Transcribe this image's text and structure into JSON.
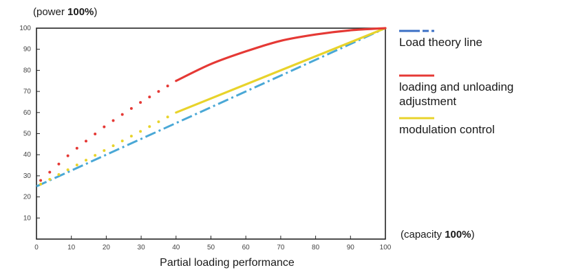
{
  "chart_data": {
    "type": "line",
    "title": "",
    "y_unit": {
      "prefix": "(power ",
      "bold": "100%",
      "suffix": ")"
    },
    "x_unit": {
      "prefix": "(capacity ",
      "bold": "100%",
      "suffix": ")"
    },
    "xlabel": "Partial loading performance",
    "ylabel": "",
    "xlim": [
      0,
      100
    ],
    "ylim": [
      0,
      100
    ],
    "x_ticks": [
      0,
      10,
      20,
      30,
      40,
      50,
      60,
      70,
      80,
      90,
      100
    ],
    "y_ticks": [
      10,
      20,
      30,
      40,
      50,
      60,
      70,
      80,
      90,
      100
    ],
    "grid": false,
    "legend_position": "right",
    "series": [
      {
        "name": "Load theory line",
        "color": "#4aa8d6",
        "legend_color": "#3a6fc4",
        "style": "dashdot",
        "x": [
          0,
          100
        ],
        "y": [
          25,
          100
        ]
      },
      {
        "name": "loading and unloading adjustment",
        "color": "#e53935",
        "dotted_until_x": 40,
        "x": [
          0,
          10,
          20,
          30,
          40,
          50,
          60,
          70,
          80,
          90,
          100
        ],
        "y": [
          26,
          41,
          54,
          65,
          75,
          83,
          89,
          94,
          97,
          99,
          100
        ]
      },
      {
        "name": "modulation control",
        "color": "#e8d32b",
        "dotted_until_x": 40,
        "x": [
          0,
          40,
          100
        ],
        "y": [
          25,
          60,
          100
        ]
      }
    ]
  }
}
